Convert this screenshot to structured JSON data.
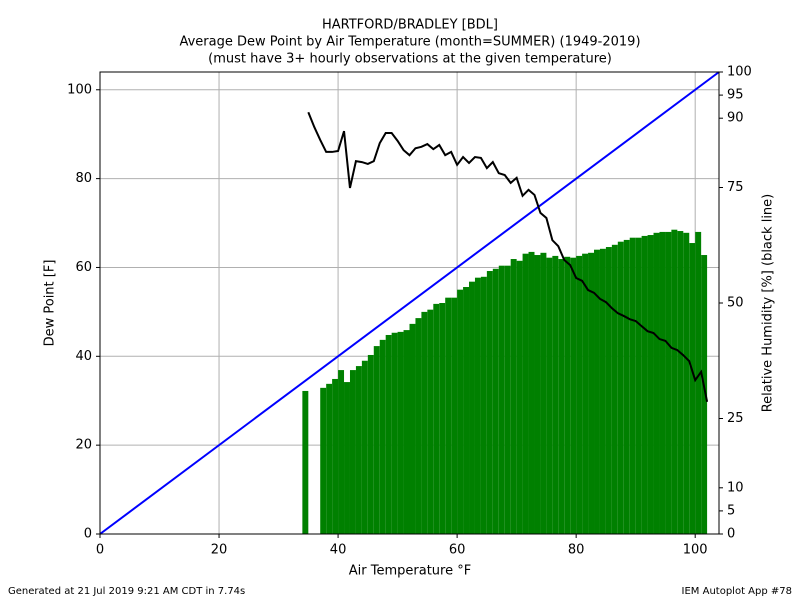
{
  "chart_data": {
    "type": "bar",
    "title": [
      "HARTFORD/BRADLEY [BDL]",
      "Average Dew Point by Air Temperature (month=SUMMER) (1949-2019)",
      "(must have 3+ hourly observations at the given temperature)"
    ],
    "x_label": "Air Temperature °F",
    "y_label": "Dew Point [F]",
    "y2_label": "Relative Humidity [%] (black line)",
    "footer_left": "Generated at 21 Jul 2019 9:21 AM CDT in 7.74s",
    "footer_right": "IEM Autoplot App #78",
    "xlim": [
      0,
      104
    ],
    "ylim": [
      0,
      104
    ],
    "y2lim": [
      0,
      100
    ],
    "xticks": [
      0,
      20,
      40,
      60,
      80,
      100
    ],
    "yticks": [
      0,
      20,
      40,
      60,
      80,
      100
    ],
    "y2ticks": [
      0,
      5,
      10,
      25,
      50,
      75,
      90,
      95,
      100
    ],
    "grid": true,
    "series": [
      {
        "type": "bar",
        "color": "#008000",
        "x": [
          34,
          35,
          36,
          37,
          38,
          39,
          40,
          41,
          42,
          43,
          44,
          45,
          46,
          47,
          48,
          49,
          50,
          51,
          52,
          53,
          54,
          55,
          56,
          57,
          58,
          59,
          60,
          61,
          62,
          63,
          64,
          65,
          66,
          67,
          68,
          69,
          70,
          71,
          72,
          73,
          74,
          75,
          76,
          77,
          78,
          79,
          80,
          81,
          82,
          83,
          84,
          85,
          86,
          87,
          88,
          89,
          90,
          91,
          92,
          93,
          94,
          95,
          96,
          97,
          98,
          99,
          100,
          101
        ],
        "values": [
          32.2,
          null,
          null,
          32.9,
          33.8,
          34.9,
          36.9,
          34.2,
          36.9,
          37.8,
          39.0,
          40.3,
          42.3,
          43.7,
          44.8,
          45.3,
          45.5,
          45.9,
          47.3,
          48.6,
          50.0,
          50.5,
          51.8,
          52.0,
          53.2,
          53.2,
          55.0,
          55.6,
          56.8,
          57.7,
          57.9,
          59.2,
          59.7,
          60.4,
          60.4,
          61.9,
          61.5,
          63.1,
          63.5,
          62.8,
          63.3,
          62.2,
          62.6,
          61.9,
          62.4,
          62.2,
          62.6,
          63.1,
          63.3,
          64.0,
          64.2,
          64.6,
          65.1,
          65.8,
          66.2,
          66.7,
          66.7,
          67.1,
          67.3,
          67.8,
          68.0,
          68.0,
          68.5,
          68.2,
          67.8,
          65.5,
          68.0,
          62.8
        ]
      },
      {
        "type": "line",
        "color": "#0000ff",
        "x": [
          0,
          104
        ],
        "values": [
          0,
          104
        ]
      },
      {
        "type": "line",
        "color": "#000000",
        "axis": "y2",
        "x": [
          35,
          36,
          37,
          38,
          39,
          40,
          41,
          42,
          43,
          44,
          45,
          46,
          47,
          48,
          49,
          50,
          51,
          52,
          53,
          54,
          55,
          56,
          57,
          58,
          59,
          60,
          61,
          62,
          63,
          64,
          65,
          66,
          67,
          68,
          69,
          70,
          71,
          72,
          73,
          74,
          75,
          76,
          77,
          78,
          79,
          80,
          81,
          82,
          83,
          84,
          85,
          86,
          87,
          88,
          89,
          90,
          91,
          92,
          93,
          94,
          95,
          96,
          97,
          98,
          99,
          100,
          101,
          102
        ],
        "values": [
          91.3,
          88.1,
          85.3,
          82.7,
          82.7,
          82.9,
          87.2,
          74.9,
          80.7,
          80.5,
          80.1,
          80.7,
          84.6,
          86.8,
          86.8,
          85.1,
          83.1,
          82.0,
          83.5,
          83.8,
          84.4,
          83.3,
          84.2,
          82.0,
          82.7,
          79.9,
          81.6,
          80.3,
          81.6,
          81.4,
          79.2,
          80.5,
          78.1,
          77.7,
          76.0,
          77.1,
          73.2,
          74.5,
          73.4,
          69.5,
          68.4,
          63.6,
          62.3,
          59.3,
          58.2,
          55.4,
          54.8,
          52.8,
          52.2,
          50.9,
          50.2,
          48.9,
          47.8,
          47.2,
          46.5,
          46.1,
          45.0,
          43.9,
          43.5,
          42.2,
          41.8,
          40.3,
          39.8,
          38.7,
          37.4,
          33.3,
          35.1,
          28.6
        ]
      }
    ]
  }
}
